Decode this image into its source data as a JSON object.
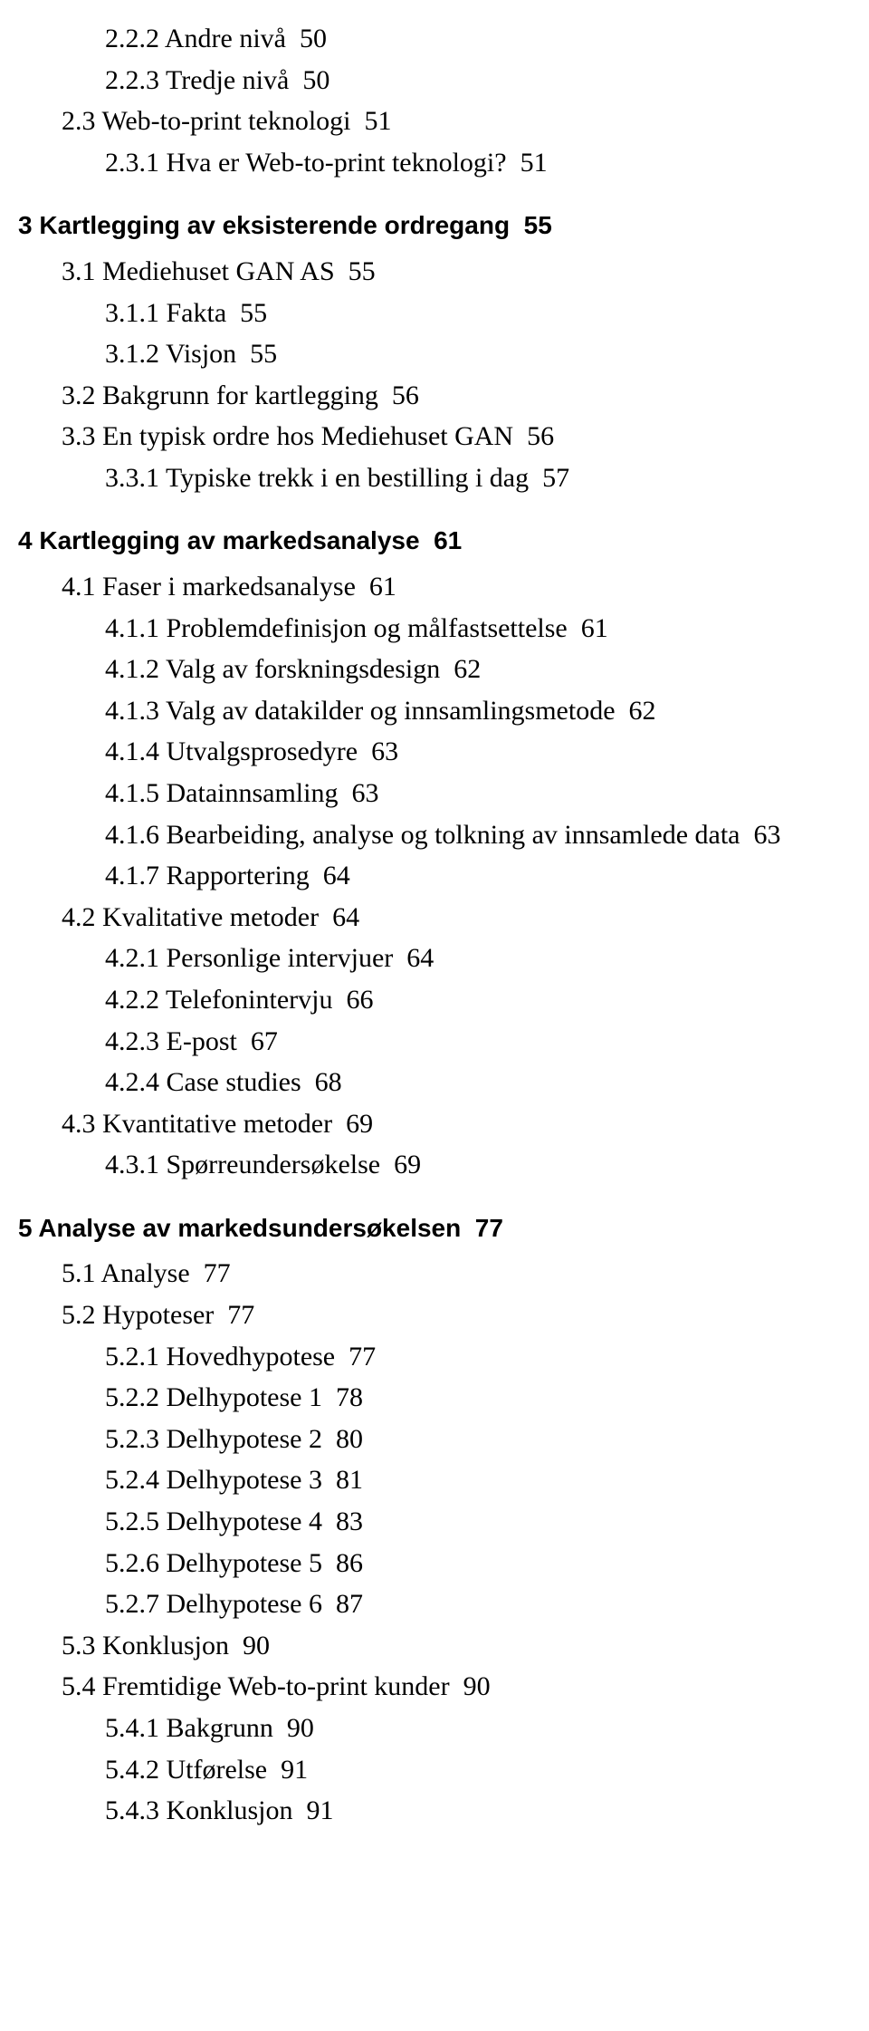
{
  "toc": [
    {
      "level": 2,
      "bold": false,
      "label": "2.2.2 Andre nivå",
      "page": "50"
    },
    {
      "level": 2,
      "bold": false,
      "label": "2.2.3 Tredje nivå",
      "page": "50"
    },
    {
      "level": 1,
      "bold": false,
      "label": "2.3 Web-to-print teknologi",
      "page": "51"
    },
    {
      "level": 2,
      "bold": false,
      "label": "2.3.1 Hva er Web-to-print teknologi?",
      "page": "51"
    },
    {
      "level": 0,
      "bold": true,
      "chapter": true,
      "label": "3 Kartlegging av eksisterende ordregang",
      "page": "55"
    },
    {
      "level": 1,
      "bold": false,
      "label": "3.1 Mediehuset GAN AS",
      "page": "55"
    },
    {
      "level": 2,
      "bold": false,
      "label": "3.1.1 Fakta",
      "page": "55"
    },
    {
      "level": 2,
      "bold": false,
      "label": "3.1.2 Visjon",
      "page": "55"
    },
    {
      "level": 1,
      "bold": false,
      "label": "3.2 Bakgrunn for kartlegging",
      "page": "56"
    },
    {
      "level": 1,
      "bold": false,
      "label": "3.3 En typisk ordre hos Mediehuset GAN",
      "page": "56"
    },
    {
      "level": 2,
      "bold": false,
      "label": "3.3.1 Typiske trekk i en bestilling i dag",
      "page": "57"
    },
    {
      "level": 0,
      "bold": true,
      "chapter": true,
      "label": "4 Kartlegging av markedsanalyse",
      "page": "61"
    },
    {
      "level": 1,
      "bold": false,
      "label": "4.1 Faser i markedsanalyse",
      "page": "61"
    },
    {
      "level": 2,
      "bold": false,
      "label": "4.1.1 Problemdefinisjon og målfastsettelse",
      "page": "61"
    },
    {
      "level": 2,
      "bold": false,
      "label": "4.1.2 Valg av forskningsdesign",
      "page": "62"
    },
    {
      "level": 2,
      "bold": false,
      "label": "4.1.3 Valg av datakilder og innsamlingsmetode",
      "page": "62"
    },
    {
      "level": 2,
      "bold": false,
      "label": "4.1.4 Utvalgsprosedyre",
      "page": "63"
    },
    {
      "level": 2,
      "bold": false,
      "label": "4.1.5 Datainnsamling",
      "page": "63"
    },
    {
      "level": 2,
      "bold": false,
      "wrap": true,
      "label": "4.1.6 Bearbeiding, analyse og tolkning av innsamlede data",
      "page": "63"
    },
    {
      "level": 2,
      "bold": false,
      "label": "4.1.7 Rapportering",
      "page": "64"
    },
    {
      "level": 1,
      "bold": false,
      "label": "4.2 Kvalitative metoder",
      "page": "64"
    },
    {
      "level": 2,
      "bold": false,
      "label": "4.2.1 Personlige intervjuer",
      "page": "64"
    },
    {
      "level": 2,
      "bold": false,
      "label": "4.2.2 Telefonintervju",
      "page": "66"
    },
    {
      "level": 2,
      "bold": false,
      "label": "4.2.3 E-post",
      "page": "67"
    },
    {
      "level": 2,
      "bold": false,
      "label": "4.2.4 Case studies",
      "page": "68"
    },
    {
      "level": 1,
      "bold": false,
      "label": "4.3 Kvantitative metoder",
      "page": "69"
    },
    {
      "level": 2,
      "bold": false,
      "label": "4.3.1 Spørreundersøkelse",
      "page": "69"
    },
    {
      "level": 0,
      "bold": true,
      "chapter": true,
      "label": "5 Analyse av markedsundersøkelsen",
      "page": "77"
    },
    {
      "level": 1,
      "bold": false,
      "label": "5.1 Analyse",
      "page": "77"
    },
    {
      "level": 1,
      "bold": false,
      "label": "5.2 Hypoteser",
      "page": "77"
    },
    {
      "level": 2,
      "bold": false,
      "label": "5.2.1 Hovedhypotese",
      "page": "77"
    },
    {
      "level": 2,
      "bold": false,
      "label": "5.2.2 Delhypotese 1",
      "page": "78"
    },
    {
      "level": 2,
      "bold": false,
      "label": "5.2.3 Delhypotese 2",
      "page": "80"
    },
    {
      "level": 2,
      "bold": false,
      "label": "5.2.4 Delhypotese 3",
      "page": "81"
    },
    {
      "level": 2,
      "bold": false,
      "label": "5.2.5 Delhypotese 4",
      "page": "83"
    },
    {
      "level": 2,
      "bold": false,
      "label": "5.2.6 Delhypotese 5",
      "page": "86"
    },
    {
      "level": 2,
      "bold": false,
      "label": "5.2.7 Delhypotese 6",
      "page": "87"
    },
    {
      "level": 1,
      "bold": false,
      "label": "5.3 Konklusjon",
      "page": "90"
    },
    {
      "level": 1,
      "bold": false,
      "label": "5.4 Fremtidige Web-to-print kunder",
      "page": "90"
    },
    {
      "level": 2,
      "bold": false,
      "label": "5.4.1 Bakgrunn",
      "page": "90"
    },
    {
      "level": 2,
      "bold": false,
      "label": "5.4.2 Utførelse",
      "page": "91"
    },
    {
      "level": 2,
      "bold": false,
      "label": "5.4.3 Konklusjon",
      "page": "91"
    }
  ]
}
